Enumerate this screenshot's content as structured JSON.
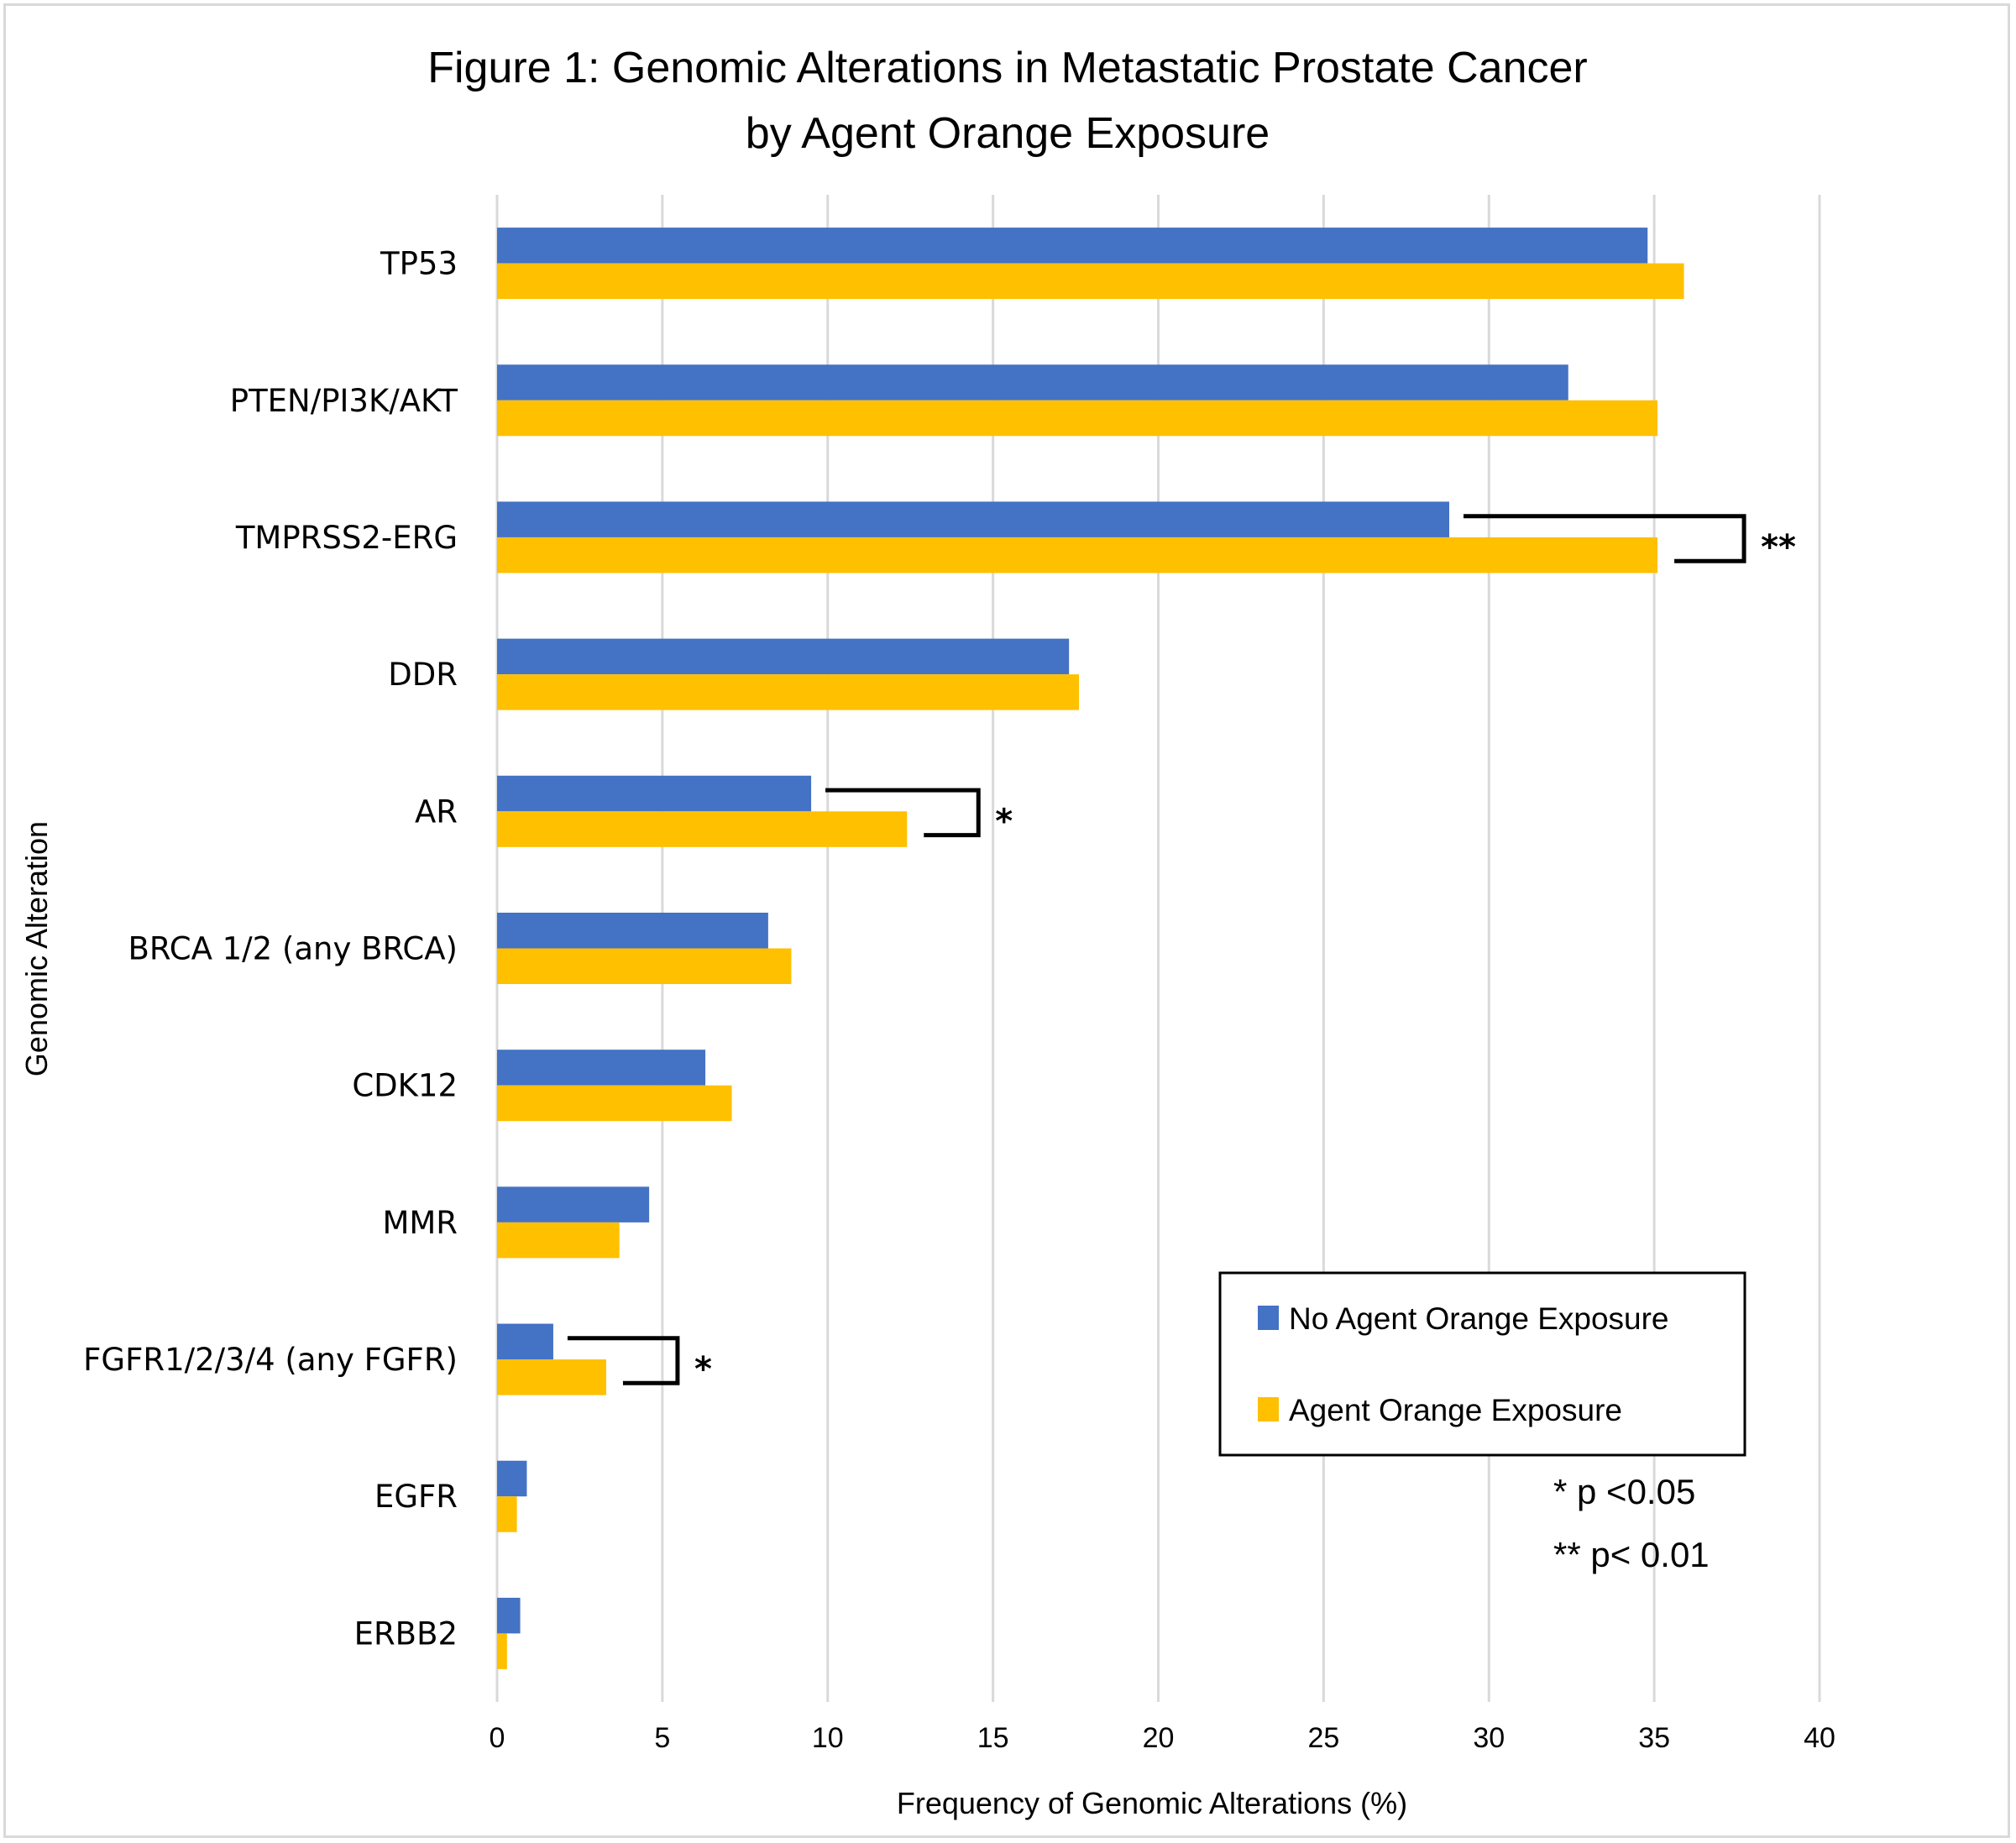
{
  "chart_data": {
    "type": "bar",
    "orientation": "horizontal",
    "title": "Figure 1: Genomic Alterations in Metastatic Prostate Cancer by Agent Orange Exposure",
    "title_lines": [
      "Figure 1: Genomic Alterations in Metastatic Prostate Cancer",
      "by Agent Orange Exposure"
    ],
    "xlabel": "Frequency of Genomic Alterations (%)",
    "ylabel": "Genomic Alteration",
    "xlim": [
      0,
      40
    ],
    "xticks": [
      0,
      5,
      10,
      15,
      20,
      25,
      30,
      35,
      40
    ],
    "grid": true,
    "categories": [
      "TP53",
      "PTEN/PI3K/AKT",
      "TMPRSS2-ERG",
      "DDR",
      "AR",
      "BRCA 1/2 (any BRCA)",
      "CDK12",
      "MMR",
      "FGFR1/2/3/4 (any FGFR)",
      "EGFR",
      "ERBB2"
    ],
    "series": [
      {
        "name": "No Agent Orange Exposure",
        "color": "#4472c4",
        "values": [
          34.8,
          32.4,
          28.8,
          17.3,
          9.5,
          8.2,
          6.3,
          4.6,
          1.7,
          0.9,
          0.7
        ]
      },
      {
        "name": "Agent Orange Exposure",
        "color": "#ffc000",
        "values": [
          35.9,
          35.1,
          35.1,
          17.6,
          12.4,
          8.9,
          7.1,
          3.7,
          3.3,
          0.6,
          0.3
        ]
      }
    ],
    "legend": {
      "placement": "bottom-right, inside plot"
    },
    "annotations": [
      {
        "category": "TMPRSS2-ERG",
        "marker": "**"
      },
      {
        "category": "AR",
        "marker": "*"
      },
      {
        "category": "FGFR1/2/3/4 (any FGFR)",
        "marker": "*"
      }
    ],
    "notes": [
      "* p <0.05",
      "** p< 0.01"
    ]
  }
}
